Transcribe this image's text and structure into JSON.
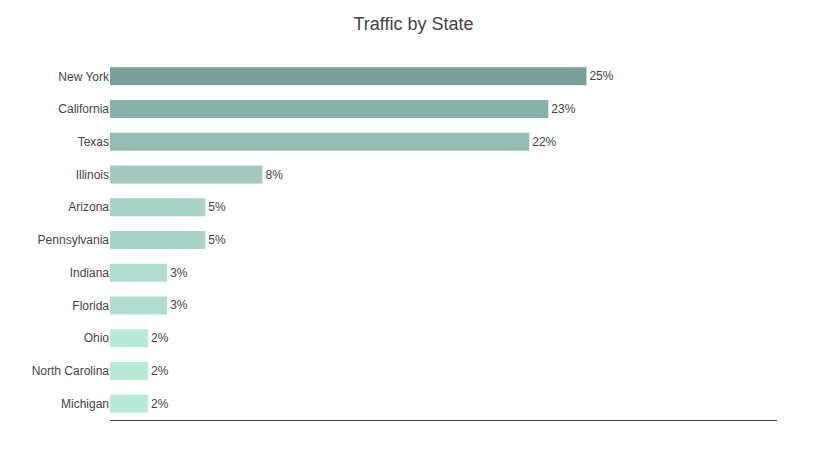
{
  "chart_data": {
    "type": "bar",
    "orientation": "horizontal",
    "title": "Traffic by State",
    "categories": [
      "New York",
      "California",
      "Texas",
      "Illinois",
      "Arizona",
      "Pennsylvania",
      "Indiana",
      "Florida",
      "Ohio",
      "North Carolina",
      "Michigan"
    ],
    "values": [
      25,
      23,
      22,
      8,
      5,
      5,
      3,
      3,
      2,
      2,
      2
    ],
    "value_labels": [
      "25%",
      "23%",
      "22%",
      "8%",
      "5%",
      "5%",
      "3%",
      "3%",
      "2%",
      "2%",
      "2%"
    ],
    "colors": [
      "#7a9e9a",
      "#88b0aa",
      "#96bdb5",
      "#a3c9be",
      "#a8d4c8",
      "#a8d4c8",
      "#b0ddd0",
      "#b0ddd0",
      "#b8ead8",
      "#b8ead8",
      "#b8ead8"
    ],
    "xlim": [
      0,
      35
    ],
    "grid": false,
    "data_labels": true,
    "tick_labels": "y"
  }
}
